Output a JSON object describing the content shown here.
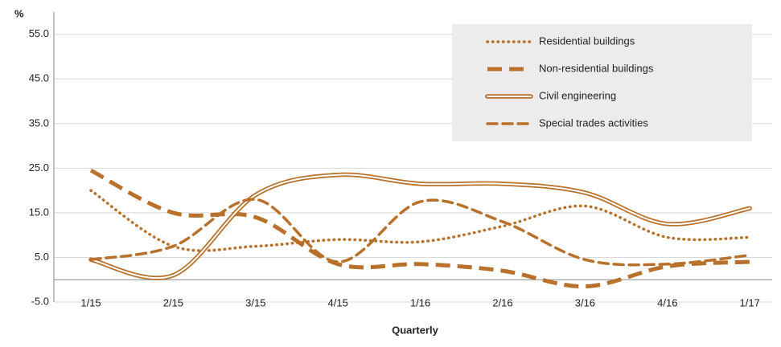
{
  "chart_data": {
    "type": "line",
    "y_label": "%",
    "x_label": "Quarterly",
    "categories": [
      "1/15",
      "2/15",
      "3/15",
      "4/15",
      "1/16",
      "2/16",
      "3/16",
      "4/16",
      "1/17"
    ],
    "series": [
      {
        "name": "Residential buildings",
        "color": "#b8702a",
        "style": "dotted",
        "values": [
          20,
          7.5,
          7.5,
          9,
          8.5,
          12,
          16.5,
          9.5,
          9.5
        ]
      },
      {
        "name": "Non-residential buildings",
        "color": "#b8702a",
        "style": "dashed-thick",
        "values": [
          24.5,
          15,
          14,
          3.5,
          3.5,
          2,
          -1.5,
          3,
          4
        ]
      },
      {
        "name": "Civil engineering",
        "color": "#b8702a",
        "style": "double",
        "values": [
          4.5,
          1,
          19,
          23.5,
          21.5,
          21.5,
          19.5,
          12.5,
          16
        ]
      },
      {
        "name": "Special trades activities",
        "color": "#b8702a",
        "style": "dashed",
        "values": [
          4.5,
          7.5,
          18,
          4,
          17.5,
          13,
          4.5,
          3.5,
          5.5
        ]
      }
    ],
    "ylim": [
      -5,
      60
    ],
    "yticks": [
      {
        "value": 55,
        "label": "55.0"
      },
      {
        "value": 45,
        "label": "45.0"
      },
      {
        "value": 35,
        "label": "35.0"
      },
      {
        "value": 25,
        "label": "25.0"
      },
      {
        "value": 15,
        "label": "15.0"
      },
      {
        "value": 5,
        "label": "5.0"
      },
      {
        "value": -5,
        "label": "-5.0"
      }
    ],
    "grid": true,
    "legend": "upper right"
  }
}
